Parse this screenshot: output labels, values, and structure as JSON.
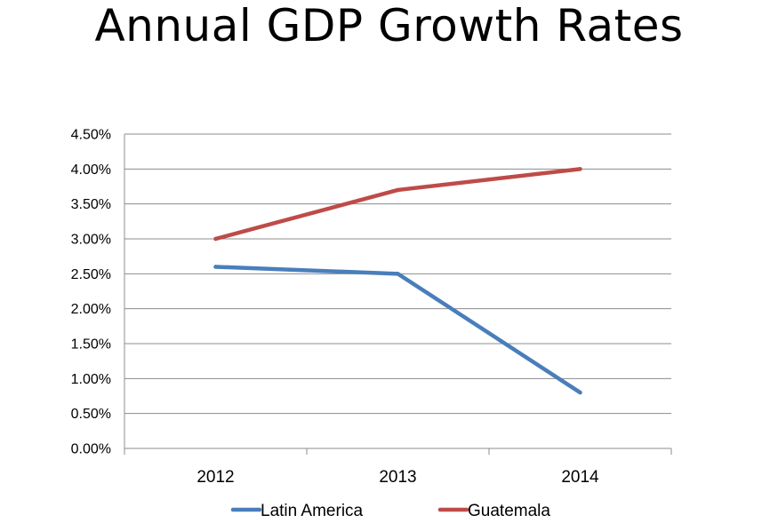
{
  "chart_data": {
    "type": "line",
    "title": "Annual GDP Growth Rates",
    "categories": [
      "2012",
      "2013",
      "2014"
    ],
    "y_tick_labels": [
      "0.00%",
      "0.50%",
      "1.00%",
      "1.50%",
      "2.00%",
      "2.50%",
      "3.00%",
      "3.50%",
      "4.00%",
      "4.50%"
    ],
    "ylim": [
      0,
      4.5
    ],
    "y_unit": "%",
    "grid": true,
    "legend_position": "bottom",
    "series": [
      {
        "name": "Latin America",
        "values": [
          2.6,
          2.5,
          0.8
        ],
        "color": "#4a7ebb"
      },
      {
        "name": "Guatemala",
        "values": [
          3.0,
          3.7,
          4.0
        ],
        "color": "#be4b48"
      }
    ]
  }
}
